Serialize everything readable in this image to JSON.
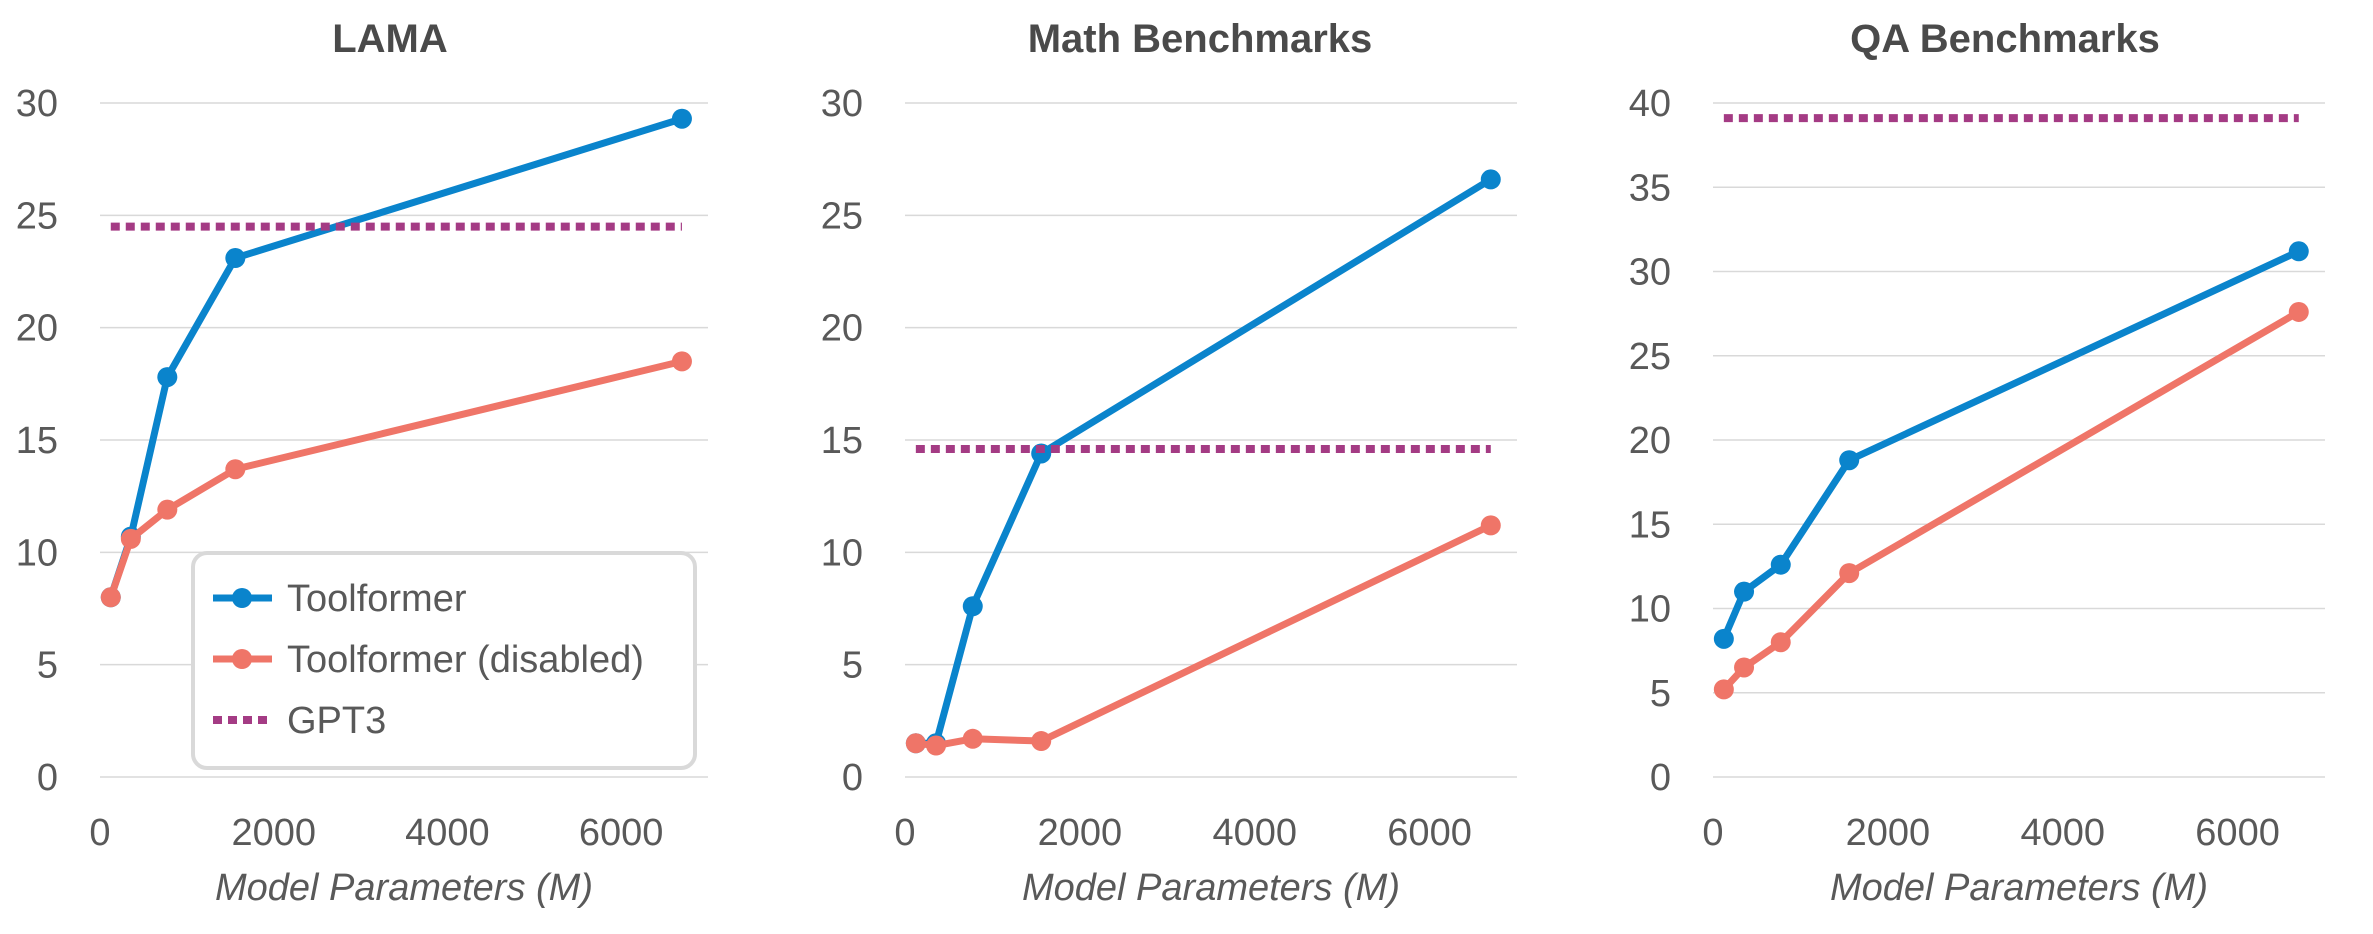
{
  "chart_data": [
    {
      "type": "line",
      "title": "LAMA",
      "xlabel": "Model Parameters (M)",
      "ylabel": "",
      "xlim": [
        0,
        7000
      ],
      "ylim": [
        0,
        30
      ],
      "xticks": [
        0,
        2000,
        4000,
        6000
      ],
      "yticks": [
        0,
        5,
        10,
        15,
        20,
        25,
        30
      ],
      "grid": true,
      "legend": "bottom-center",
      "series": [
        {
          "name": "Toolformer",
          "x": [
            124,
            355,
            775,
            1558,
            6700
          ],
          "y": [
            8.0,
            10.7,
            17.8,
            23.1,
            29.3
          ],
          "color": "#0a84cc",
          "style": "solid"
        },
        {
          "name": "Toolformer (disabled)",
          "x": [
            124,
            355,
            775,
            1558,
            6700
          ],
          "y": [
            8.0,
            10.6,
            11.9,
            13.7,
            18.5
          ],
          "color": "#ef7568",
          "style": "solid"
        },
        {
          "name": "GPT3",
          "x": [
            124,
            6700
          ],
          "y": [
            24.5,
            24.5
          ],
          "color": "#a43b84",
          "style": "dotted"
        }
      ]
    },
    {
      "type": "line",
      "title": "Math Benchmarks",
      "xlabel": "Model Parameters (M)",
      "ylabel": "",
      "xlim": [
        0,
        7000
      ],
      "ylim": [
        0,
        30
      ],
      "xticks": [
        0,
        2000,
        4000,
        6000
      ],
      "yticks": [
        0,
        5,
        10,
        15,
        20,
        25,
        30
      ],
      "grid": true,
      "series": [
        {
          "name": "Toolformer",
          "x": [
            124,
            355,
            775,
            1558,
            6700
          ],
          "y": [
            1.5,
            1.5,
            7.6,
            14.4,
            26.6
          ],
          "color": "#0a84cc",
          "style": "solid"
        },
        {
          "name": "Toolformer (disabled)",
          "x": [
            124,
            355,
            775,
            1558,
            6700
          ],
          "y": [
            1.5,
            1.4,
            1.7,
            1.6,
            11.2
          ],
          "color": "#ef7568",
          "style": "solid"
        },
        {
          "name": "GPT3",
          "x": [
            124,
            6700
          ],
          "y": [
            14.6,
            14.6
          ],
          "color": "#a43b84",
          "style": "dotted"
        }
      ]
    },
    {
      "type": "line",
      "title": "QA Benchmarks",
      "xlabel": "Model Parameters (M)",
      "ylabel": "",
      "xlim": [
        0,
        7000
      ],
      "ylim": [
        0,
        40
      ],
      "xticks": [
        0,
        2000,
        4000,
        6000
      ],
      "yticks": [
        0,
        5,
        10,
        15,
        20,
        25,
        30,
        35,
        40
      ],
      "grid": true,
      "series": [
        {
          "name": "Toolformer",
          "x": [
            124,
            355,
            775,
            1558,
            6700
          ],
          "y": [
            8.2,
            11.0,
            12.6,
            18.8,
            31.2
          ],
          "color": "#0a84cc",
          "style": "solid"
        },
        {
          "name": "Toolformer (disabled)",
          "x": [
            124,
            355,
            775,
            1558,
            6700
          ],
          "y": [
            5.2,
            6.5,
            8.0,
            12.1,
            27.6
          ],
          "color": "#ef7568",
          "style": "solid"
        },
        {
          "name": "GPT3",
          "x": [
            124,
            6700
          ],
          "y": [
            39.1,
            39.1
          ],
          "color": "#a43b84",
          "style": "dotted"
        }
      ]
    }
  ]
}
